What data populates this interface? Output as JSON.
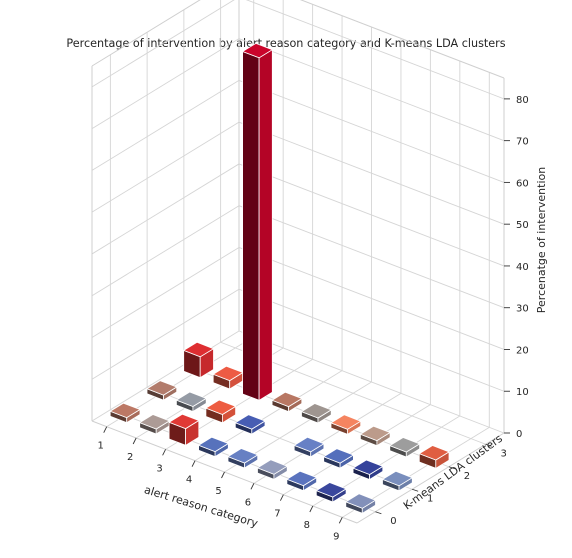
{
  "chart_data": {
    "type": "bar3d",
    "title": "Percentage of intervention by alert reason category and K-means LDA clusters",
    "xlabel": "alert reason category",
    "ylabel": "K-means LDA clusters",
    "zlabel": "Percenatge of intervention",
    "x_ticks": [
      "1",
      "2",
      "3",
      "4",
      "5",
      "6",
      "7",
      "8",
      "9"
    ],
    "y_ticks": [
      "0",
      "1",
      "2",
      "3"
    ],
    "z_ticks": [
      "0",
      "10",
      "20",
      "30",
      "40",
      "50",
      "60",
      "70",
      "80"
    ],
    "zlim": [
      0,
      85
    ],
    "grid": true,
    "bars": [
      {
        "x": 1,
        "y": 0,
        "value": 0,
        "color": "#a86b5a"
      },
      {
        "x": 2,
        "y": 0,
        "value": 0,
        "color": "#9a8a86"
      },
      {
        "x": 3,
        "y": 0,
        "value": 4,
        "color": "#c8332f"
      },
      {
        "x": 4,
        "y": 0,
        "value": 0,
        "color": "#4e66a8"
      },
      {
        "x": 5,
        "y": 0,
        "value": 0,
        "color": "#5c72ae"
      },
      {
        "x": 6,
        "y": 0,
        "value": 0,
        "color": "#848ca8"
      },
      {
        "x": 7,
        "y": 0,
        "value": 0,
        "color": "#5067aa"
      },
      {
        "x": 8,
        "y": 0,
        "value": 0,
        "color": "#343f8c"
      },
      {
        "x": 9,
        "y": 0,
        "value": 0,
        "color": "#7481a6"
      },
      {
        "x": 1,
        "y": 1,
        "value": 0,
        "color": "#9f6f60"
      },
      {
        "x": 2,
        "y": 1,
        "value": 0,
        "color": "#858a93"
      },
      {
        "x": 3,
        "y": 1,
        "value": 2,
        "color": "#d4523a"
      },
      {
        "x": 4,
        "y": 1,
        "value": 0,
        "color": "#3f53a0"
      },
      {
        "x": 6,
        "y": 1,
        "value": 0,
        "color": "#5c72b0"
      },
      {
        "x": 7,
        "y": 1,
        "value": 0,
        "color": "#4b63a8"
      },
      {
        "x": 8,
        "y": 1,
        "value": 0,
        "color": "#2f3c8a"
      },
      {
        "x": 9,
        "y": 1,
        "value": 0,
        "color": "#6c7fa9"
      },
      {
        "x": 1,
        "y": 2,
        "value": 5,
        "color": "#c6292c"
      },
      {
        "x": 2,
        "y": 2,
        "value": 2,
        "color": "#d4513d"
      },
      {
        "x": 3,
        "y": 2,
        "value": 82,
        "color": "#b40426"
      },
      {
        "x": 4,
        "y": 2,
        "value": 0,
        "color": "#a46a58"
      },
      {
        "x": 5,
        "y": 2,
        "value": 0,
        "color": "#8d8581"
      },
      {
        "x": 6,
        "y": 2,
        "value": 1,
        "color": "#db7656"
      },
      {
        "x": 7,
        "y": 2,
        "value": 0,
        "color": "#a88a7c"
      },
      {
        "x": 8,
        "y": 2,
        "value": 0,
        "color": "#8c8c8c"
      },
      {
        "x": 9,
        "y": 2,
        "value": 2,
        "color": "#c8543b"
      }
    ]
  }
}
